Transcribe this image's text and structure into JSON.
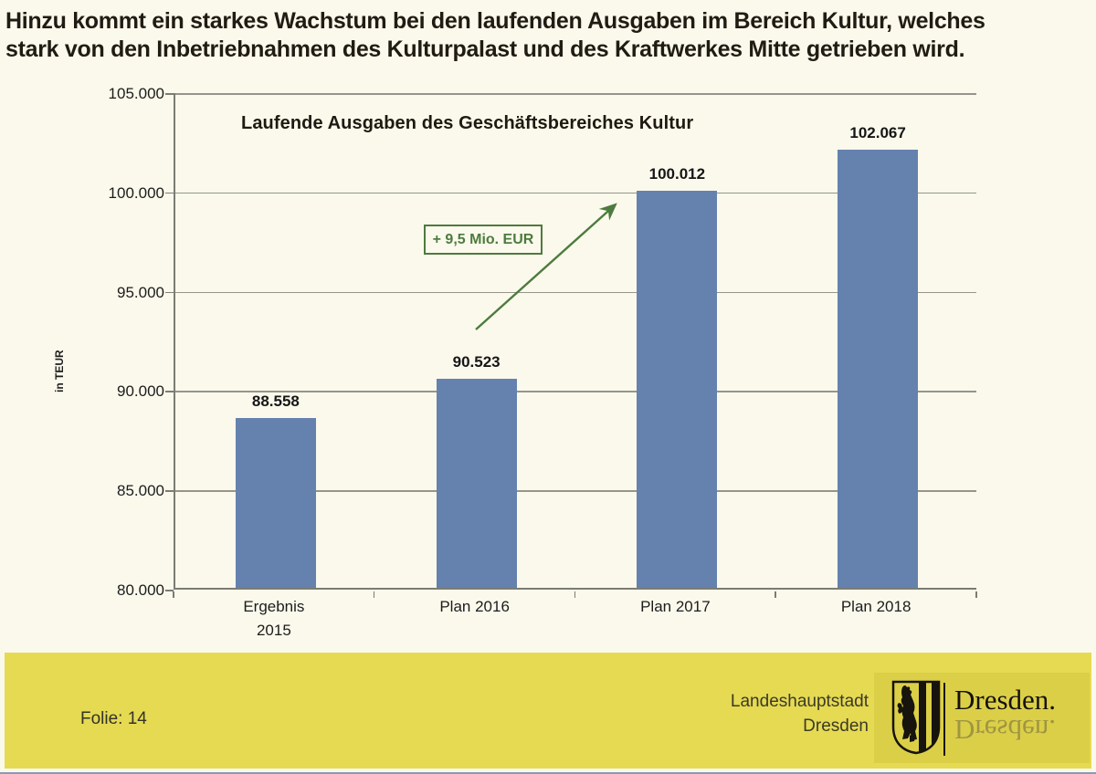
{
  "slide": {
    "heading": {
      "line1": "Hinzu kommt ein starkes Wachstum bei den laufenden Ausgaben im Bereich Kultur, welches",
      "line2": "stark von den Inbetriebnahmen des Kulturpalast und des Kraftwerkes Mitte getrieben wird."
    },
    "footer": {
      "slide_number_label": "Folie: 14",
      "org_line1": "Landeshauptstadt",
      "org_line2": "Dresden",
      "logo_wordmark": "Dresden.",
      "band_color": "#e5da52",
      "logo_block_color": "#dccf48"
    }
  },
  "chart_data": {
    "type": "bar",
    "title": "Laufende Ausgaben des Geschäftsbereiches Kultur",
    "categories": [
      "Ergebnis 2015",
      "Plan 2016",
      "Plan 2017",
      "Plan 2018"
    ],
    "category_label_lines": [
      [
        "Ergebnis",
        "2015"
      ],
      [
        "Plan 2016"
      ],
      [
        "Plan 2017"
      ],
      [
        "Plan 2018"
      ]
    ],
    "values": [
      88558,
      90523,
      100012,
      102067
    ],
    "value_labels": [
      "88.558",
      "90.523",
      "100.012",
      "102.067"
    ],
    "xlabel": "",
    "ylabel": "in TEUR",
    "ylim": [
      80000,
      105000
    ],
    "ytick_step": 5000,
    "ytick_labels_top_to_bottom": [
      "105.000",
      "100.000",
      "95.000",
      "90.000",
      "85.000",
      "80.000"
    ],
    "grid": true,
    "legend": "none",
    "bar_color": "#6581ae",
    "gridline_color": "#95958c",
    "annotation": {
      "text": "+ 9,5 Mio. EUR",
      "color": "#4d7b3e",
      "arrow": "from Plan 2016 toward top of Plan 2017 bar"
    }
  }
}
